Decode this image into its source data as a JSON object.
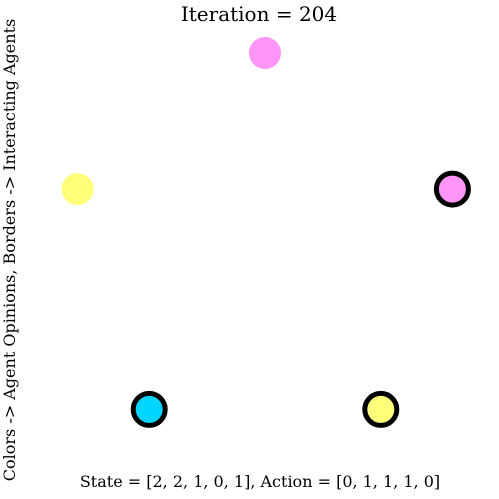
{
  "chart_data": {
    "type": "scatter",
    "title": "Iteration = 204",
    "xlabel": "State = [2, 2, 1, 0, 1], Action = [0, 1, 1, 1, 0]",
    "ylabel": "Colors -> Agent Opinions, Borders -> Interacting Agents",
    "grid": false,
    "axes_visible": false,
    "opinion_colors": {
      "0": "#00d5ff",
      "1": "#ffff7a",
      "2": "#ff96f7"
    },
    "agents": [
      {
        "state": 2,
        "action": 0
      },
      {
        "state": 2,
        "action": 1
      },
      {
        "state": 1,
        "action": 1
      },
      {
        "state": 0,
        "action": 1
      },
      {
        "state": 1,
        "action": 0
      }
    ]
  }
}
